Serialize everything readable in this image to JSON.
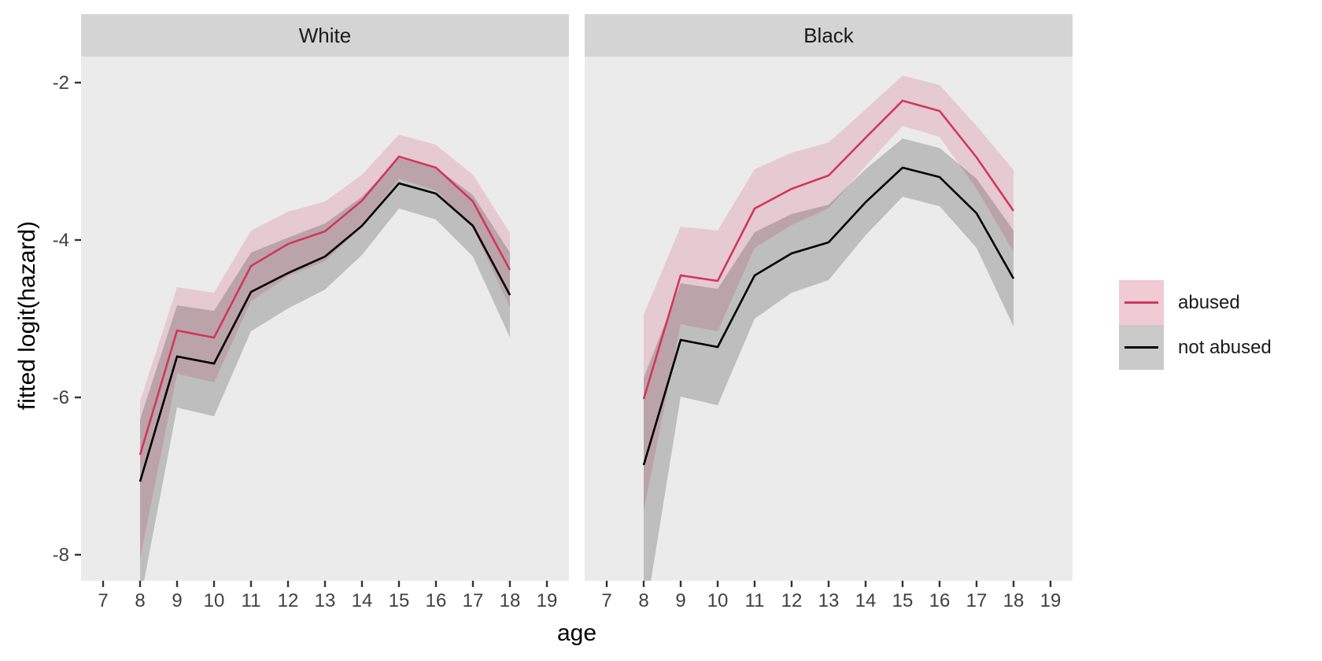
{
  "figure": {
    "y_axis_title": "fitted logit(hazard)",
    "x_axis_title": "age"
  },
  "legend": {
    "position": "right",
    "items": [
      {
        "label": "abused",
        "line_color": "#D1365E",
        "key_fill": "#F0CBD3"
      },
      {
        "label": "not abused",
        "line_color": "#000000",
        "key_fill": "#C9C9C9"
      }
    ]
  },
  "colors": {
    "panel_bg": "#EBEBEB",
    "strip_bg": "#D4D4D4",
    "abused_line": "#D1365E",
    "not_abused_line": "#000000",
    "abused_ribbon": "rgba(215,95,130,0.24)",
    "not_abused_ribbon": "rgba(0,0,0,0.19)",
    "axis_text": "#404040",
    "tick_mark": "#333333"
  },
  "chart_data": {
    "type": "line",
    "faceted_by": "race",
    "title": "",
    "xlabel": "age",
    "ylabel": "fitted logit(hazard)",
    "x_ticks": [
      7,
      8,
      9,
      10,
      11,
      12,
      13,
      14,
      15,
      16,
      17,
      18,
      19
    ],
    "y_ticks": [
      -2,
      -4,
      -6,
      -8
    ],
    "xlim": [
      7,
      19
    ],
    "ylim": [
      -8.33,
      -1.67
    ],
    "grid": false,
    "legend_position": "right",
    "panels": [
      {
        "facet": "White",
        "x": [
          8,
          9,
          10,
          11,
          12,
          13,
          14,
          15,
          16,
          17,
          18
        ],
        "series": [
          {
            "name": "abused",
            "values": [
              -6.73,
              -5.15,
              -5.24,
              -4.33,
              -4.05,
              -3.89,
              -3.5,
              -2.94,
              -3.08,
              -3.51,
              -4.38
            ],
            "ci_hi": [
              -6.05,
              -4.6,
              -4.67,
              -3.88,
              -3.64,
              -3.51,
              -3.17,
              -2.66,
              -2.79,
              -3.17,
              -3.91
            ],
            "ci_lo": [
              -8.05,
              -5.7,
              -5.81,
              -4.78,
              -4.46,
              -4.27,
              -3.83,
              -3.22,
              -3.37,
              -3.85,
              -4.85
            ]
          },
          {
            "name": "not abused",
            "values": [
              -7.07,
              -5.48,
              -5.57,
              -4.66,
              -4.42,
              -4.21,
              -3.82,
              -3.28,
              -3.41,
              -3.82,
              -4.7
            ],
            "ci_hi": [
              -6.28,
              -4.83,
              -4.9,
              -4.16,
              -3.97,
              -3.79,
              -3.45,
              -2.96,
              -3.08,
              -3.43,
              -4.16
            ],
            "ci_lo": [
              -8.6,
              -6.13,
              -6.24,
              -5.16,
              -4.87,
              -4.63,
              -4.19,
              -3.6,
              -3.74,
              -4.21,
              -5.24
            ]
          }
        ]
      },
      {
        "facet": "Black",
        "x": [
          8,
          9,
          10,
          11,
          12,
          13,
          14,
          15,
          16,
          17,
          18
        ],
        "series": [
          {
            "name": "abused",
            "values": [
              -6.02,
              -4.45,
              -4.52,
              -3.6,
              -3.35,
              -3.18,
              -2.7,
              -2.23,
              -2.36,
              -2.95,
              -3.63
            ],
            "ci_hi": [
              -4.95,
              -3.83,
              -3.88,
              -3.1,
              -2.89,
              -2.76,
              -2.34,
              -1.91,
              -2.03,
              -2.55,
              -3.11
            ],
            "ci_lo": [
              -7.45,
              -5.07,
              -5.16,
              -4.1,
              -3.81,
              -3.6,
              -3.06,
              -2.55,
              -2.69,
              -3.35,
              -4.15
            ]
          },
          {
            "name": "not abused",
            "values": [
              -6.86,
              -5.27,
              -5.36,
              -4.45,
              -4.17,
              -4.03,
              -3.52,
              -3.08,
              -3.2,
              -3.66,
              -4.49
            ],
            "ci_hi": [
              -5.75,
              -4.55,
              -4.62,
              -3.9,
              -3.67,
              -3.55,
              -3.1,
              -2.71,
              -2.83,
              -3.22,
              -3.88
            ],
            "ci_lo": [
              -8.9,
              -5.99,
              -6.1,
              -5.0,
              -4.67,
              -4.51,
              -3.94,
              -3.45,
              -3.57,
              -4.1,
              -5.1
            ]
          }
        ]
      }
    ]
  }
}
